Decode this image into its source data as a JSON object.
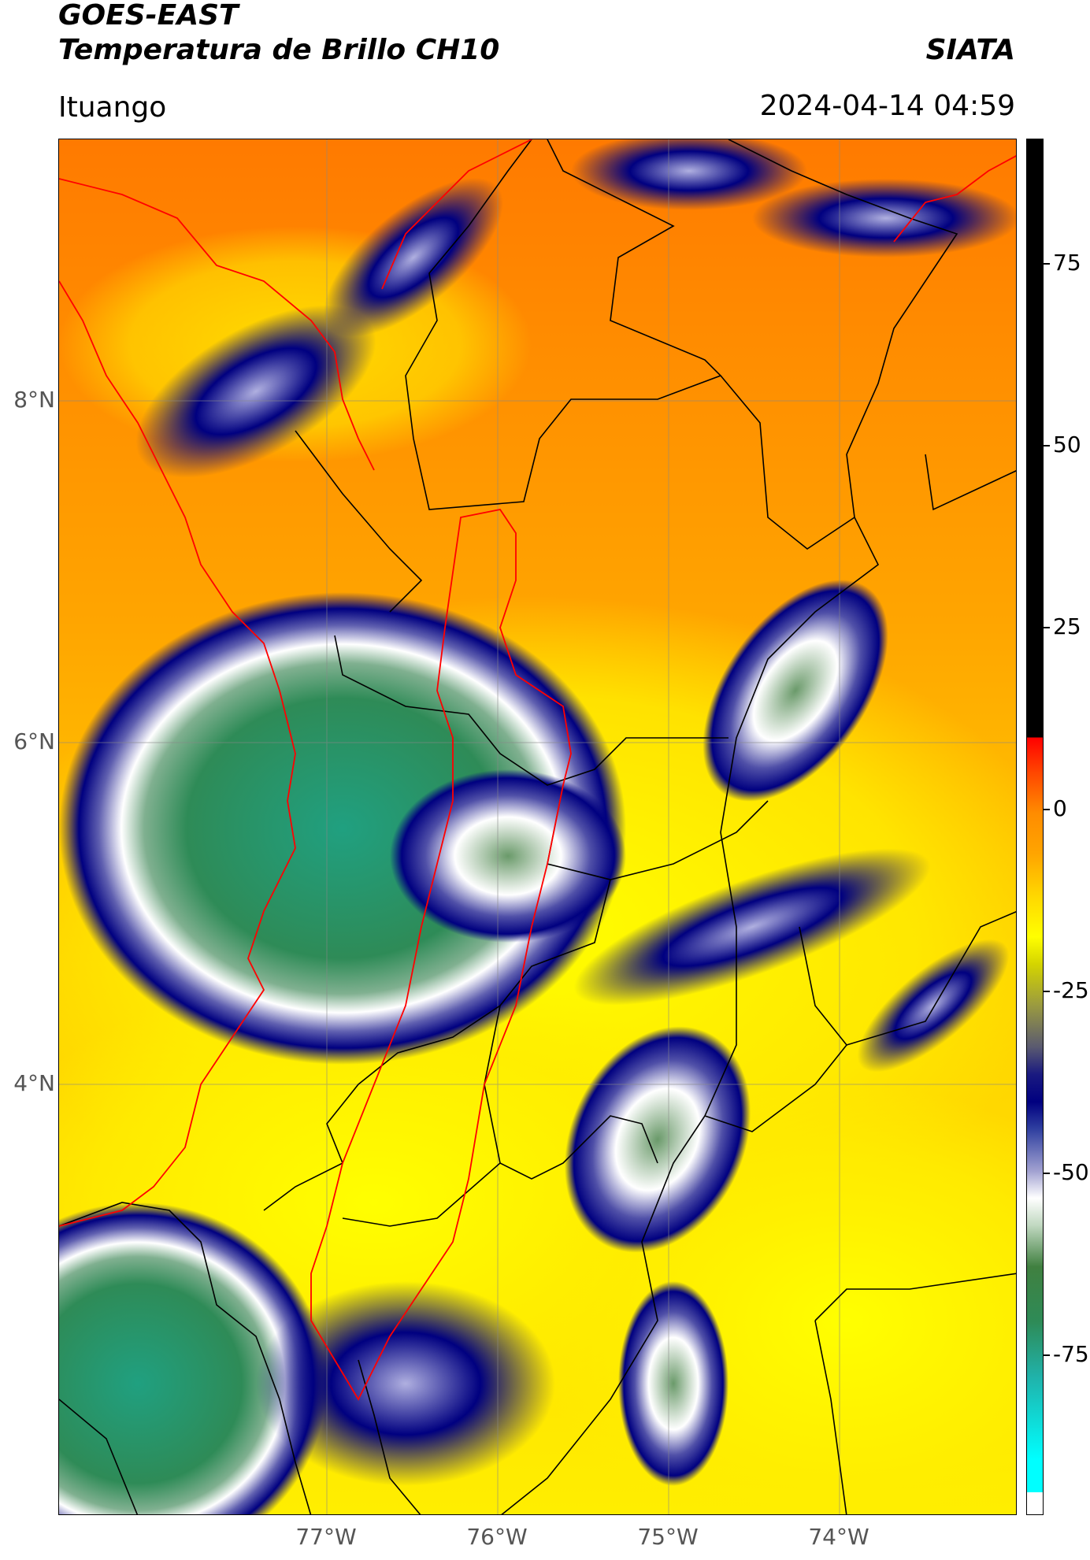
{
  "title": {
    "line1": "GOES-EAST",
    "line2": "Temperatura de Brillo CH10",
    "brand": "SIATA",
    "location": "Ituango",
    "datetime": "2024-04-14 04:59"
  },
  "axes": {
    "y_labels": [
      "8°N",
      "6°N",
      "4°N"
    ],
    "x_labels": [
      "77°W",
      "76°W",
      "75°W",
      "74°W"
    ]
  },
  "colorbar": {
    "labels": [
      "75",
      "50",
      "25",
      "0",
      "-25",
      "-50",
      "-75"
    ]
  },
  "colors": {
    "warm_orange": "#ff8c00",
    "yellow": "#ffff00",
    "navy": "#000080",
    "cloud_white": "#ffffff",
    "cold_green": "#2e8b57",
    "boundary_red": "#ff0000",
    "boundary_black": "#000000"
  }
}
